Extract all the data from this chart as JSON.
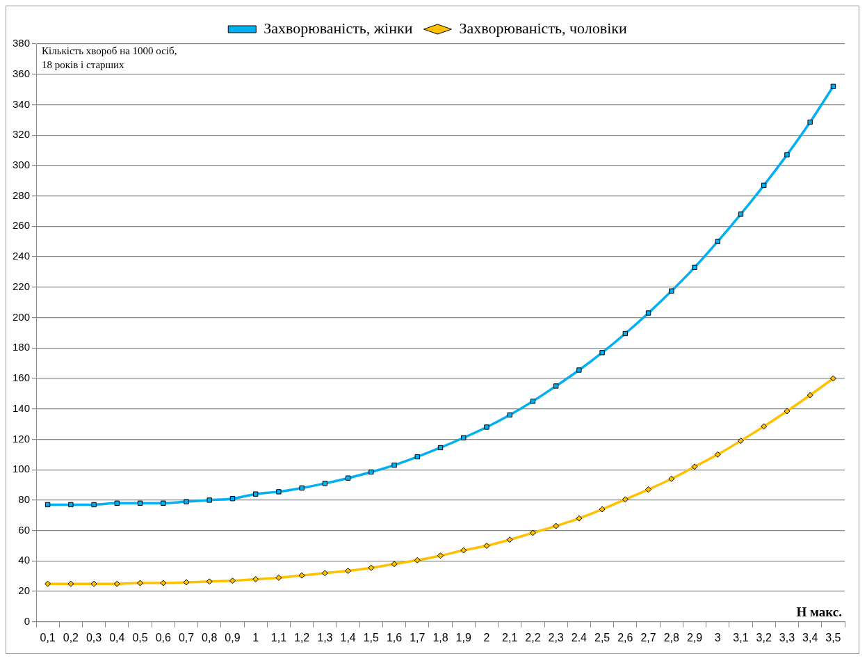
{
  "chart_data": {
    "type": "line",
    "ylabel": "Кількість хвороб на 1000 осіб,\n18 років і старших",
    "xlabel": "Н макс.",
    "categories": [
      "0,1",
      "0,2",
      "0,3",
      "0,4",
      "0,5",
      "0,6",
      "0,7",
      "0,8",
      "0,9",
      "1",
      "1,1",
      "1,2",
      "1,3",
      "1,4",
      "1,5",
      "1,6",
      "1,7",
      "1,8",
      "1,9",
      "2",
      "2,1",
      "2,2",
      "2,3",
      "2.4",
      "2,5",
      "2,6",
      "2,7",
      "2,8",
      "2,9",
      "3",
      "3,1",
      "3,2",
      "3,3",
      "3,4",
      "3,5"
    ],
    "series": [
      {
        "name": "Захворюваність, жінки",
        "color": "#00b0f0",
        "marker": "square",
        "values": [
          77,
          77,
          77,
          78,
          78,
          78,
          79,
          80,
          81,
          84,
          85.5,
          88,
          91,
          94.5,
          98.5,
          103,
          108.5,
          114.5,
          121,
          128,
          136,
          145,
          155,
          165.5,
          177,
          189.5,
          203,
          217.5,
          233,
          250,
          268,
          287,
          307,
          328.5,
          352
        ]
      },
      {
        "name": "Захворюваність, чоловіки",
        "color": "#ffc000",
        "marker": "diamond",
        "values": [
          25,
          25,
          25,
          25,
          25.5,
          25.5,
          26,
          26.5,
          27,
          28,
          29,
          30.5,
          32,
          33.5,
          35.5,
          38,
          40.5,
          43.5,
          47,
          50,
          54,
          58.5,
          63,
          68,
          74,
          80.5,
          87,
          94,
          102,
          110,
          119,
          128.5,
          138.5,
          149,
          160
        ]
      }
    ],
    "ylim": [
      0,
      380
    ],
    "yticks": [
      0,
      20,
      40,
      60,
      80,
      100,
      120,
      140,
      160,
      180,
      200,
      220,
      240,
      260,
      280,
      300,
      320,
      340,
      360,
      380
    ],
    "grid": "y",
    "legend": "top",
    "line_style": "solid"
  }
}
